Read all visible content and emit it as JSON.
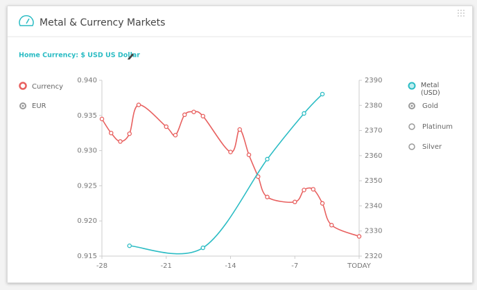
{
  "header": {
    "title": "Metal & Currency Markets",
    "home_currency": "Home Currency: $ USD US Dollar"
  },
  "legend_left": {
    "title": "Currency",
    "options": [
      "EUR"
    ]
  },
  "legend_right": {
    "options": [
      "Gold",
      "Platinum",
      "Silver"
    ]
  },
  "chart_data": {
    "type": "line",
    "xlim": [
      -28,
      0
    ],
    "xticks": [
      -28,
      -21,
      -14,
      -7,
      {
        "value": 0,
        "label": "TODAY"
      }
    ],
    "ylim": [
      0.915,
      0.94
    ],
    "yticks": [
      0.915,
      {
        "value": 0.92,
        "label": "0.920"
      },
      0.925,
      {
        "value": 0.93,
        "label": "0.930"
      },
      0.935,
      {
        "value": 0.94,
        "label": "0.940"
      }
    ],
    "y2lim": [
      2320,
      2390
    ],
    "y2ticks": [
      2320,
      2330,
      2340,
      2350,
      2360,
      2370,
      2380,
      2390
    ],
    "series": [
      {
        "name": "Currency",
        "color": "#e8605f",
        "x": [
          -28,
          -27,
          -26,
          -25,
          -24,
          -21,
          -20,
          -19,
          -18,
          -17,
          -14,
          -13,
          -12,
          -11,
          -10,
          -7,
          -6,
          -5,
          -4,
          -3,
          0
        ],
        "values": [
          0.9345,
          0.9325,
          0.9313,
          0.9324,
          0.9365,
          0.9334,
          0.9322,
          0.9351,
          0.9355,
          0.9349,
          0.9298,
          0.933,
          0.9294,
          0.9263,
          0.9234,
          0.9227,
          0.9244,
          0.9245,
          0.9225,
          0.9194,
          0.9178
        ]
      },
      {
        "name": "Metal (USD)",
        "color": "#2bbcc4",
        "axis": "y2",
        "x": [
          -25,
          -17,
          -10,
          -6,
          -4
        ],
        "values": [
          2324.1,
          2323.3,
          2358.6,
          2376.8,
          2384.5
        ]
      }
    ]
  }
}
